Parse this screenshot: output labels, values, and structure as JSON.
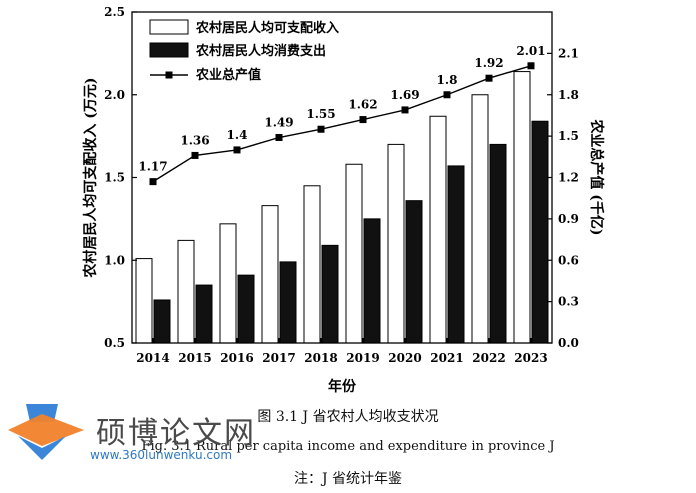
{
  "chart_data": {
    "type": "bar",
    "categories": [
      "2014",
      "2015",
      "2016",
      "2017",
      "2018",
      "2019",
      "2020",
      "2021",
      "2022",
      "2023"
    ],
    "series": [
      {
        "name": "农村居民人均可支配收入",
        "kind": "bar",
        "axis": "left",
        "color": "#ffffff",
        "values": [
          1.01,
          1.12,
          1.22,
          1.33,
          1.45,
          1.58,
          1.7,
          1.87,
          2.0,
          2.14
        ]
      },
      {
        "name": "农村居民人均消费支出",
        "kind": "bar",
        "axis": "left",
        "color": "#111111",
        "values": [
          0.76,
          0.85,
          0.91,
          0.99,
          1.09,
          1.25,
          1.36,
          1.57,
          1.7,
          1.84
        ]
      },
      {
        "name": "农业总产值",
        "kind": "line",
        "axis": "right",
        "color": "#000000",
        "values": [
          1.17,
          1.36,
          1.4,
          1.49,
          1.55,
          1.62,
          1.69,
          1.8,
          1.92,
          2.01
        ],
        "labels": [
          "1.17",
          "1.36",
          "1.4",
          "1.49",
          "1.55",
          "1.62",
          "1.69",
          "1.8",
          "1.92",
          "2.01"
        ]
      }
    ],
    "xlabel": "年份",
    "ylabel_left": "农村居民人均可支配收入 (万元)",
    "ylabel_right": "农业总产值 (千亿)",
    "ylim_left": [
      0.5,
      2.5
    ],
    "ylim_right": [
      0.0,
      2.4
    ],
    "yticks_left": [
      "0.5",
      "1.0",
      "1.5",
      "2.0",
      "2.5"
    ],
    "yticks_right": [
      "0.0",
      "0.3",
      "0.6",
      "0.9",
      "1.2",
      "1.5",
      "1.8",
      "2.1"
    ],
    "legend_position": "top-left",
    "grid": false
  },
  "caption": {
    "cn": "图 3.1 J 省农村人均收支状况",
    "en": "Fig. 3.1 Rural per capita income and expenditure in province J",
    "note": "注：J 省统计年鉴"
  },
  "watermark": {
    "text": "硕博论文网",
    "url": "www.360lunwenku.com",
    "icon": "graduation-cap-icon"
  }
}
